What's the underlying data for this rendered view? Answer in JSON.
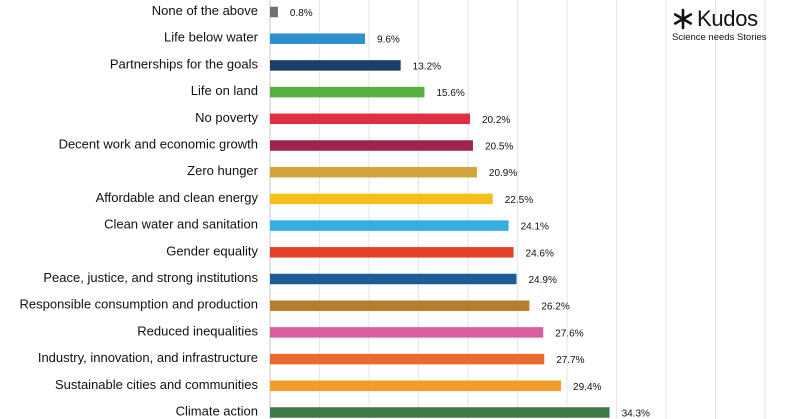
{
  "brand": {
    "name": "Kudos",
    "tagline": "Science needs Stories",
    "icon": "asterisk-icon"
  },
  "chart_data": {
    "type": "bar",
    "orientation": "horizontal",
    "title": "",
    "xlabel": "",
    "ylabel": "",
    "xlim": [
      0,
      50
    ],
    "grid": true,
    "value_suffix": "%",
    "categories": [
      "None of the above",
      "Life below water",
      "Partnerships for the goals",
      "Life on land",
      "No poverty",
      "Decent work and economic growth",
      "Zero hunger",
      "Affordable and clean energy",
      "Clean water and sanitation",
      "Gender equality",
      "Peace, justice, and strong institutions",
      "Responsible consumption and production",
      "Reduced inequalities",
      "Industry, innovation, and infrastructure",
      "Sustainable cities and communities",
      "Climate action"
    ],
    "values": [
      0.8,
      9.6,
      13.2,
      15.6,
      20.2,
      20.5,
      20.9,
      22.5,
      24.1,
      24.6,
      24.9,
      26.2,
      27.6,
      27.7,
      29.4,
      34.3
    ],
    "value_labels": [
      "0.8%",
      "9.6%",
      "13.2%",
      "15.6%",
      "20.2%",
      "20.5%",
      "20.9%",
      "22.5%",
      "24.1%",
      "24.6%",
      "24.9%",
      "26.2%",
      "27.6%",
      "27.7%",
      "29.4%",
      "34.3%"
    ],
    "colors": [
      "#707070",
      "#2F8FD1",
      "#1D3F66",
      "#56AF3E",
      "#DD3141",
      "#A0254A",
      "#D4A43C",
      "#F5BE1B",
      "#33AEDF",
      "#E3402B",
      "#1C5B94",
      "#B57E2A",
      "#DA5D9E",
      "#EC6A2D",
      "#F39C29",
      "#3F7B48"
    ]
  }
}
